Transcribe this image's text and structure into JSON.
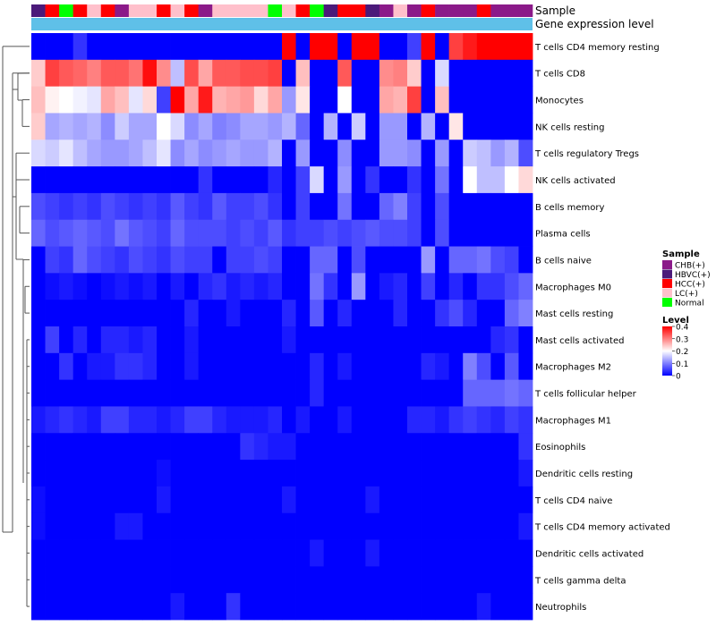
{
  "chart_data": {
    "type": "heatmap",
    "title": "",
    "annotation_tracks": [
      "Sample",
      "Gene expression level"
    ],
    "rows": [
      "T cells CD4 memory resting",
      "T cells CD8",
      "Monocytes",
      "NK cells resting",
      "T cells regulatory  Tregs",
      "NK cells activated",
      "B cells memory",
      "Plasma cells",
      "B cells naive",
      "Macrophages M0",
      "Mast cells resting",
      "Mast cells activated",
      "Macrophages M2",
      "T cells follicular helper",
      "Macrophages M1",
      "Eosinophils",
      "Dendritic cells resting",
      "T cells CD4 naive",
      "T cells CD4 memory activated",
      "Dendritic cells activated",
      "T cells gamma delta",
      "Neutrophils"
    ],
    "sample_groups": [
      "HBVC(+)",
      "HCC(+)",
      "Normal",
      "HCC(+)",
      "LC(+)",
      "HCC(+)",
      "CHB(+)",
      "LC(+)",
      "LC(+)",
      "HCC(+)",
      "LC(+)",
      "HCC(+)",
      "CHB(+)",
      "LC(+)",
      "LC(+)",
      "LC(+)",
      "LC(+)",
      "Normal",
      "LC(+)",
      "HCC(+)",
      "Normal",
      "HBVC(+)",
      "HCC(+)",
      "HCC(+)",
      "HBVC(+)",
      "CHB(+)",
      "LC(+)",
      "CHB(+)",
      "HCC(+)",
      "CHB(+)",
      "CHB(+)",
      "CHB(+)",
      "HCC(+)",
      "CHB(+)",
      "CHB(+)",
      "CHB(+)"
    ],
    "values": [
      [
        0.0,
        0.0,
        0.0,
        0.04,
        0.0,
        0.0,
        0.0,
        0.0,
        0.0,
        0.0,
        0.0,
        0.0,
        0.0,
        0.0,
        0.0,
        0.0,
        0.0,
        0.0,
        0.4,
        0.0,
        0.4,
        0.4,
        0.0,
        0.4,
        0.4,
        0.0,
        0.0,
        0.05,
        0.4,
        0.0,
        0.35,
        0.38,
        0.4,
        0.4,
        0.4,
        0.4
      ],
      [
        0.24,
        0.35,
        0.33,
        0.32,
        0.3,
        0.33,
        0.33,
        0.31,
        0.39,
        0.29,
        0.15,
        0.34,
        0.27,
        0.33,
        0.33,
        0.34,
        0.34,
        0.35,
        0.0,
        0.25,
        0.0,
        0.0,
        0.33,
        0.0,
        0.0,
        0.29,
        0.3,
        0.24,
        0.0,
        0.17,
        0.0,
        0.0,
        0.0,
        0.0,
        0.0,
        0.0
      ],
      [
        0.25,
        0.21,
        0.2,
        0.19,
        0.18,
        0.27,
        0.25,
        0.18,
        0.23,
        0.05,
        0.4,
        0.27,
        0.38,
        0.26,
        0.27,
        0.28,
        0.23,
        0.27,
        0.12,
        0.22,
        0.0,
        0.0,
        0.2,
        0.0,
        0.0,
        0.27,
        0.26,
        0.35,
        0.0,
        0.25,
        0.0,
        0.0,
        0.0,
        0.0,
        0.0,
        0.0
      ],
      [
        0.24,
        0.13,
        0.14,
        0.13,
        0.14,
        0.11,
        0.16,
        0.13,
        0.13,
        0.2,
        0.17,
        0.11,
        0.13,
        0.1,
        0.11,
        0.13,
        0.13,
        0.12,
        0.14,
        0.08,
        0.0,
        0.14,
        0.0,
        0.16,
        0.0,
        0.12,
        0.12,
        0.0,
        0.14,
        0.0,
        0.22,
        0.0,
        0.0,
        0.0,
        0.0,
        0.0
      ],
      [
        0.17,
        0.16,
        0.18,
        0.15,
        0.13,
        0.12,
        0.12,
        0.13,
        0.15,
        0.18,
        0.11,
        0.13,
        0.11,
        0.12,
        0.13,
        0.12,
        0.12,
        0.14,
        0.0,
        0.12,
        0.0,
        0.0,
        0.11,
        0.0,
        0.0,
        0.12,
        0.12,
        0.11,
        0.0,
        0.12,
        0.0,
        0.16,
        0.15,
        0.12,
        0.14,
        0.06
      ],
      [
        0.0,
        0.0,
        0.0,
        0.0,
        0.0,
        0.0,
        0.0,
        0.0,
        0.0,
        0.0,
        0.0,
        0.0,
        0.04,
        0.0,
        0.0,
        0.0,
        0.0,
        0.03,
        0.0,
        0.05,
        0.17,
        0.0,
        0.12,
        0.0,
        0.04,
        0.0,
        0.0,
        0.04,
        0.0,
        0.09,
        0.0,
        0.2,
        0.15,
        0.15,
        0.2,
        0.23
      ],
      [
        0.06,
        0.05,
        0.04,
        0.05,
        0.04,
        0.06,
        0.05,
        0.04,
        0.05,
        0.04,
        0.07,
        0.05,
        0.04,
        0.07,
        0.05,
        0.05,
        0.06,
        0.04,
        0.0,
        0.05,
        0.0,
        0.0,
        0.09,
        0.0,
        0.0,
        0.08,
        0.1,
        0.05,
        0.0,
        0.06,
        0.0,
        0.0,
        0.0,
        0.0,
        0.0,
        0.0
      ],
      [
        0.08,
        0.06,
        0.07,
        0.08,
        0.07,
        0.06,
        0.09,
        0.07,
        0.06,
        0.05,
        0.08,
        0.06,
        0.06,
        0.06,
        0.05,
        0.06,
        0.05,
        0.07,
        0.04,
        0.05,
        0.05,
        0.06,
        0.05,
        0.06,
        0.07,
        0.06,
        0.06,
        0.05,
        0.0,
        0.06,
        0.0,
        0.0,
        0.0,
        0.0,
        0.0,
        0.0
      ],
      [
        0.0,
        0.05,
        0.04,
        0.08,
        0.06,
        0.05,
        0.04,
        0.06,
        0.05,
        0.04,
        0.06,
        0.05,
        0.05,
        0.0,
        0.05,
        0.05,
        0.06,
        0.05,
        0.0,
        0.0,
        0.08,
        0.08,
        0.0,
        0.06,
        0.0,
        0.0,
        0.0,
        0.0,
        0.12,
        0.0,
        0.08,
        0.08,
        0.09,
        0.06,
        0.05,
        0.0
      ],
      [
        0.0,
        0.01,
        0.02,
        0.01,
        0.0,
        0.01,
        0.02,
        0.01,
        0.02,
        0.0,
        0.02,
        0.0,
        0.03,
        0.04,
        0.02,
        0.03,
        0.02,
        0.03,
        0.0,
        0.0,
        0.09,
        0.04,
        0.0,
        0.12,
        0.0,
        0.02,
        0.03,
        0.0,
        0.05,
        0.0,
        0.03,
        0.0,
        0.04,
        0.04,
        0.06,
        0.08
      ],
      [
        0.0,
        0.0,
        0.0,
        0.0,
        0.0,
        0.0,
        0.0,
        0.0,
        0.0,
        0.0,
        0.0,
        0.03,
        0.0,
        0.0,
        0.02,
        0.0,
        0.0,
        0.0,
        0.03,
        0.0,
        0.07,
        0.0,
        0.03,
        0.0,
        0.0,
        0.0,
        0.03,
        0.0,
        0.0,
        0.04,
        0.06,
        0.03,
        0.0,
        0.0,
        0.08,
        0.1
      ],
      [
        0.0,
        0.05,
        0.0,
        0.03,
        0.0,
        0.03,
        0.03,
        0.02,
        0.03,
        0.0,
        0.0,
        0.02,
        0.0,
        0.0,
        0.0,
        0.0,
        0.0,
        0.0,
        0.02,
        0.0,
        0.0,
        0.0,
        0.0,
        0.0,
        0.0,
        0.0,
        0.0,
        0.0,
        0.0,
        0.0,
        0.0,
        0.0,
        0.0,
        0.03,
        0.04,
        0.0
      ],
      [
        0.0,
        0.0,
        0.04,
        0.0,
        0.02,
        0.02,
        0.04,
        0.04,
        0.03,
        0.0,
        0.0,
        0.02,
        0.0,
        0.0,
        0.0,
        0.0,
        0.0,
        0.0,
        0.0,
        0.0,
        0.03,
        0.0,
        0.02,
        0.0,
        0.0,
        0.0,
        0.0,
        0.0,
        0.03,
        0.02,
        0.0,
        0.1,
        0.06,
        0.0,
        0.07,
        0.0
      ],
      [
        0.0,
        0.0,
        0.0,
        0.0,
        0.0,
        0.0,
        0.0,
        0.0,
        0.0,
        0.0,
        0.0,
        0.0,
        0.0,
        0.0,
        0.0,
        0.0,
        0.0,
        0.0,
        0.0,
        0.0,
        0.03,
        0.0,
        0.0,
        0.0,
        0.0,
        0.0,
        0.0,
        0.0,
        0.0,
        0.0,
        0.0,
        0.08,
        0.08,
        0.08,
        0.09,
        0.08
      ],
      [
        0.02,
        0.03,
        0.04,
        0.03,
        0.02,
        0.05,
        0.05,
        0.03,
        0.03,
        0.02,
        0.03,
        0.05,
        0.05,
        0.03,
        0.02,
        0.02,
        0.02,
        0.03,
        0.0,
        0.02,
        0.0,
        0.0,
        0.02,
        0.0,
        0.0,
        0.0,
        0.0,
        0.03,
        0.03,
        0.02,
        0.04,
        0.05,
        0.04,
        0.03,
        0.05,
        0.04
      ],
      [
        0.0,
        0.0,
        0.0,
        0.0,
        0.0,
        0.0,
        0.0,
        0.0,
        0.0,
        0.0,
        0.0,
        0.0,
        0.0,
        0.0,
        0.0,
        0.04,
        0.03,
        0.02,
        0.02,
        0.0,
        0.0,
        0.0,
        0.0,
        0.0,
        0.0,
        0.0,
        0.0,
        0.0,
        0.0,
        0.0,
        0.0,
        0.0,
        0.0,
        0.0,
        0.0,
        0.04
      ],
      [
        0.0,
        0.0,
        0.0,
        0.0,
        0.0,
        0.0,
        0.0,
        0.0,
        0.0,
        0.01,
        0.0,
        0.0,
        0.0,
        0.0,
        0.0,
        0.0,
        0.0,
        0.0,
        0.0,
        0.0,
        0.0,
        0.0,
        0.0,
        0.0,
        0.0,
        0.0,
        0.0,
        0.0,
        0.0,
        0.0,
        0.0,
        0.0,
        0.0,
        0.0,
        0.0,
        0.02
      ],
      [
        0.01,
        0.0,
        0.0,
        0.0,
        0.0,
        0.0,
        0.0,
        0.0,
        0.0,
        0.02,
        0.0,
        0.0,
        0.0,
        0.0,
        0.0,
        0.0,
        0.0,
        0.0,
        0.02,
        0.0,
        0.0,
        0.0,
        0.0,
        0.0,
        0.02,
        0.0,
        0.0,
        0.0,
        0.0,
        0.0,
        0.0,
        0.0,
        0.0,
        0.0,
        0.0,
        0.0
      ],
      [
        0.01,
        0.0,
        0.0,
        0.0,
        0.0,
        0.0,
        0.02,
        0.02,
        0.0,
        0.0,
        0.0,
        0.0,
        0.0,
        0.0,
        0.0,
        0.0,
        0.0,
        0.0,
        0.0,
        0.0,
        0.0,
        0.0,
        0.0,
        0.0,
        0.0,
        0.0,
        0.0,
        0.0,
        0.0,
        0.0,
        0.0,
        0.0,
        0.0,
        0.0,
        0.0,
        0.02
      ],
      [
        0.0,
        0.0,
        0.0,
        0.0,
        0.0,
        0.0,
        0.0,
        0.0,
        0.0,
        0.0,
        0.0,
        0.0,
        0.0,
        0.0,
        0.0,
        0.0,
        0.0,
        0.0,
        0.0,
        0.0,
        0.02,
        0.0,
        0.0,
        0.0,
        0.02,
        0.0,
        0.0,
        0.0,
        0.0,
        0.0,
        0.0,
        0.0,
        0.0,
        0.0,
        0.0,
        0.0
      ],
      [
        0.0,
        0.0,
        0.0,
        0.0,
        0.0,
        0.0,
        0.0,
        0.0,
        0.0,
        0.0,
        0.0,
        0.0,
        0.0,
        0.0,
        0.0,
        0.0,
        0.0,
        0.0,
        0.0,
        0.0,
        0.0,
        0.0,
        0.0,
        0.0,
        0.0,
        0.0,
        0.0,
        0.0,
        0.0,
        0.0,
        0.0,
        0.0,
        0.0,
        0.0,
        0.0,
        0.0
      ],
      [
        0.0,
        0.0,
        0.0,
        0.0,
        0.0,
        0.0,
        0.0,
        0.0,
        0.0,
        0.0,
        0.02,
        0.0,
        0.0,
        0.0,
        0.04,
        0.0,
        0.0,
        0.0,
        0.0,
        0.0,
        0.0,
        0.0,
        0.0,
        0.0,
        0.0,
        0.0,
        0.0,
        0.0,
        0.0,
        0.0,
        0.0,
        0.0,
        0.02,
        0.0,
        0.0,
        0.0
      ]
    ],
    "color_scale": {
      "min": 0,
      "max": 0.4,
      "low": "#0000ff",
      "mid": "#ffffff",
      "high": "#ff0000",
      "midpoint": 0.2
    },
    "legend": {
      "sample_title": "Sample",
      "level_title": "Level",
      "groups": [
        {
          "label": "CHB(+)",
          "color": "#8b1a89"
        },
        {
          "label": "HBVC(+)",
          "color": "#4b1a7a"
        },
        {
          "label": "HCC(+)",
          "color": "#ff0000"
        },
        {
          "label": "LC(+)",
          "color": "#ffc0cb"
        },
        {
          "label": "Normal",
          "color": "#00ff00"
        }
      ],
      "level_ticks": [
        "0.4",
        "0.3",
        "0.2",
        "0.1",
        "0"
      ],
      "level_tick_values": [
        0.4,
        0.3,
        0.2,
        0.1,
        0
      ],
      "position": "right"
    },
    "expression_track_color": "#5fc0e8"
  }
}
